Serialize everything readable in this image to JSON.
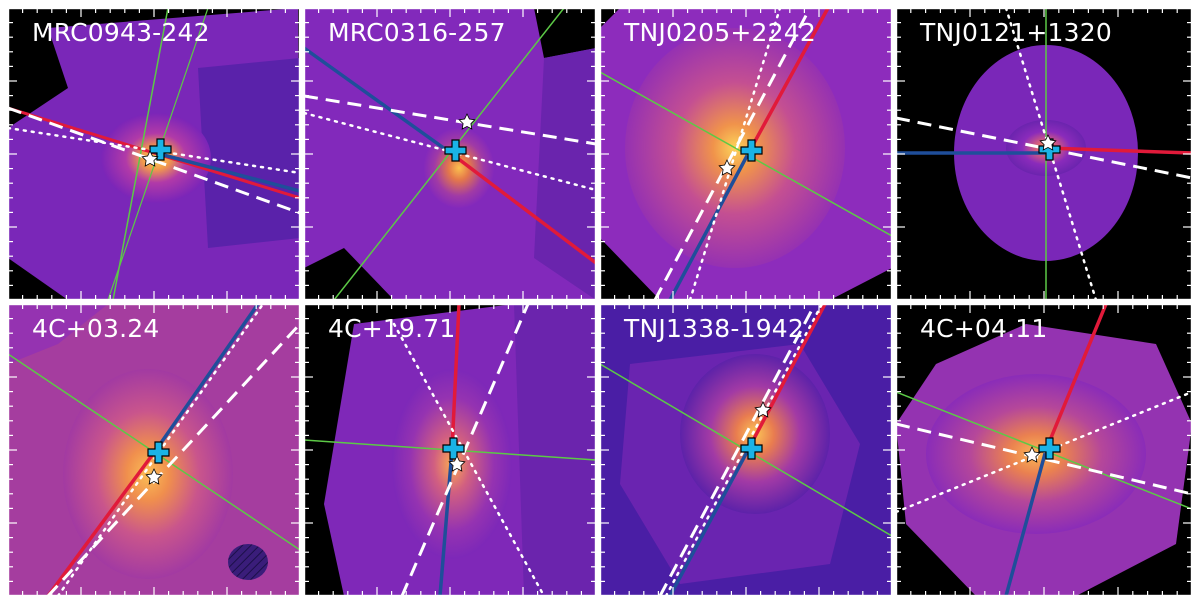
{
  "figure": {
    "panels": [
      {
        "name": "MRC0943-242"
      },
      {
        "name": "MRC0316-257"
      },
      {
        "name": "TNJ0205+2242"
      },
      {
        "name": "TNJ0121+1320"
      },
      {
        "name": "4C+03.24"
      },
      {
        "name": "4C+19.71"
      },
      {
        "name": "TNJ1338-1942"
      },
      {
        "name": "4C+04.11"
      }
    ],
    "colors": {
      "background": "#000000",
      "map_low": "#3d1ba0",
      "map_mid": "#8a29c2",
      "map_high": "#f6a94a",
      "blue_line": "#1f4e9a",
      "red_line": "#e11a3a",
      "green_line": "#5cc946",
      "white_line": "#ffffff",
      "cross": "#1ab3e6",
      "star": "#ffffff"
    },
    "markers": [
      "cyan-cross",
      "white-star"
    ],
    "hatched_ellipse_panel": "4C+03.24"
  }
}
